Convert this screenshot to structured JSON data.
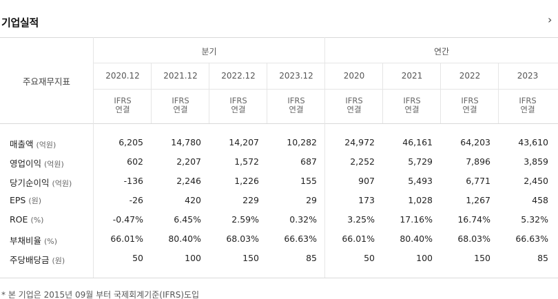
{
  "header": {
    "title": "기업실적",
    "more_icon": "chevron-right-icon",
    "more_glyph": "›"
  },
  "table": {
    "row_header_label": "주요재무지표",
    "group_quarter": "분기",
    "group_annual": "연간",
    "periods": [
      "2020.12",
      "2021.12",
      "2022.12",
      "2023.12",
      "2020",
      "2021",
      "2022",
      "2023"
    ],
    "standard_top": "IFRS",
    "standard_bottom": "연결",
    "rows": [
      {
        "name": "매출액",
        "unit": "(억원)",
        "values": [
          "6,205",
          "14,780",
          "14,207",
          "10,282",
          "24,972",
          "46,161",
          "64,203",
          "43,610"
        ]
      },
      {
        "name": "영업이익",
        "unit": "(억원)",
        "values": [
          "602",
          "2,207",
          "1,572",
          "687",
          "2,252",
          "5,729",
          "7,896",
          "3,859"
        ]
      },
      {
        "name": "당기순이익",
        "unit": "(억원)",
        "values": [
          "-136",
          "2,246",
          "1,226",
          "155",
          "907",
          "5,493",
          "6,771",
          "2,450"
        ]
      },
      {
        "name": "EPS",
        "unit": "(원)",
        "values": [
          "-26",
          "420",
          "229",
          "29",
          "173",
          "1,028",
          "1,267",
          "458"
        ]
      },
      {
        "name": "ROE",
        "unit": "(%)",
        "values": [
          "-0.47%",
          "6.45%",
          "2.59%",
          "0.32%",
          "3.25%",
          "17.16%",
          "16.74%",
          "5.32%"
        ]
      },
      {
        "name": "부채비율",
        "unit": "(%)",
        "values": [
          "66.01%",
          "80.40%",
          "68.03%",
          "66.63%",
          "66.01%",
          "80.40%",
          "68.03%",
          "66.63%"
        ]
      },
      {
        "name": "주당배당금",
        "unit": "(원)",
        "values": [
          "50",
          "100",
          "150",
          "85",
          "50",
          "100",
          "150",
          "85"
        ]
      }
    ]
  },
  "footnote": "* 본 기업은 2015년 09월 부터 국제회계기준(IFRS)도입",
  "colors": {
    "line": "#e5e5e5",
    "strong_line": "#d0d0d0",
    "text": "#222222",
    "muted": "#666666"
  }
}
